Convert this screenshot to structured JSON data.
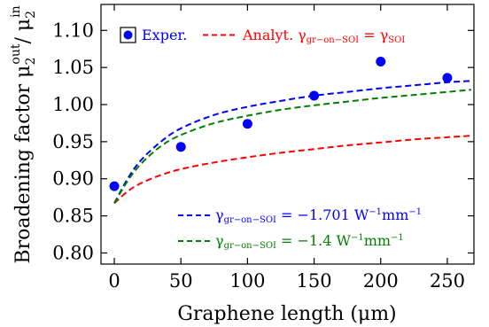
{
  "chart_data": {
    "type": "scatter",
    "xlabel": "Graphene length (μm)",
    "ylabel": "Broadening factor μ2out/ μ2in",
    "ylabel_parts": {
      "main": "Broadening factor μ",
      "sub1": "2",
      "sup1": "out",
      "slash": "/ μ",
      "sub2": "2",
      "sup2": "in"
    },
    "xlim": [
      -10,
      270
    ],
    "ylim": [
      0.785,
      1.135
    ],
    "xticks": [
      0,
      50,
      100,
      150,
      200,
      250
    ],
    "yticks": [
      0.8,
      0.85,
      0.9,
      0.95,
      1.0,
      1.05,
      1.1
    ],
    "ytick_labels": [
      "0.80",
      "0.85",
      "0.90",
      "0.95",
      "1.00",
      "1.05",
      "1.10"
    ],
    "series": [
      {
        "name": "Exper.",
        "style": "points",
        "color": "#0000ff",
        "x": [
          0,
          50,
          100,
          150,
          200,
          250
        ],
        "y": [
          0.89,
          0.943,
          0.974,
          1.012,
          1.058,
          1.036
        ]
      },
      {
        "name": "Analyt. γgr-on-SOI = γSOI",
        "style": "dashed",
        "color": "#ff0000",
        "x": [
          0,
          10,
          20,
          35,
          50,
          75,
          100,
          125,
          150,
          175,
          200,
          225,
          250,
          268
        ],
        "y": [
          0.867,
          0.883,
          0.894,
          0.905,
          0.913,
          0.922,
          0.929,
          0.935,
          0.94,
          0.945,
          0.949,
          0.953,
          0.956,
          0.958
        ]
      },
      {
        "name": "γgr-on-SOI = −1.701 W−1mm−1",
        "style": "dashed",
        "color": "#0000ff",
        "x": [
          0,
          10,
          20,
          35,
          50,
          75,
          100,
          125,
          150,
          175,
          200,
          225,
          250,
          268
        ],
        "y": [
          0.867,
          0.9,
          0.925,
          0.95,
          0.968,
          0.986,
          0.997,
          1.005,
          1.012,
          1.017,
          1.022,
          1.026,
          1.03,
          1.032
        ]
      },
      {
        "name": "γgr-on-SOI = −1.4 W−1mm−1",
        "style": "dashed",
        "color": "#008000",
        "x": [
          0,
          10,
          20,
          35,
          50,
          75,
          100,
          125,
          150,
          175,
          200,
          225,
          250,
          268
        ],
        "y": [
          0.867,
          0.897,
          0.92,
          0.944,
          0.959,
          0.975,
          0.985,
          0.993,
          0.999,
          1.004,
          1.009,
          1.013,
          1.017,
          1.02
        ]
      }
    ],
    "legend_top": {
      "exper_label": "Exper.",
      "analyt_label_main": "Analyt. γ",
      "analyt_sub": "gr−on−SOI",
      "analyt_eq": " = γ",
      "analyt_sub2": "SOI"
    },
    "legend_bottom": [
      {
        "gamma": "γ",
        "sub": "gr−on−SOI",
        "eq": " = −1.701 W",
        "sup1": "−1",
        "unit": "mm",
        "sup2": "−1",
        "color": "#0000ff"
      },
      {
        "gamma": "γ",
        "sub": "gr−on−SOI",
        "eq": " = −1.4 W",
        "sup1": "−1",
        "unit": "mm",
        "sup2": "−1",
        "color": "#008000"
      }
    ],
    "grid": false,
    "legend_placement": [
      "top",
      "bottom-right"
    ]
  }
}
